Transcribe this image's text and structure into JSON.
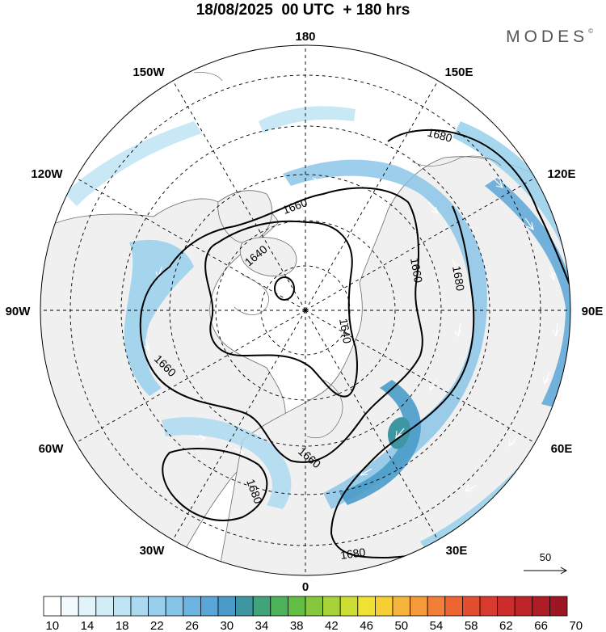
{
  "header": {
    "title": "18/08/2025  00 UTC  + 180 hrs",
    "brand": "MODES"
  },
  "map": {
    "projection": "polar stereographic, north pole",
    "longitude_labels": [
      "180",
      "150E",
      "120E",
      "90E",
      "60E",
      "30E",
      "0",
      "30W",
      "60W",
      "90W",
      "120W",
      "150W"
    ],
    "contour_labels": [
      "1640",
      "1660",
      "1680"
    ],
    "reference_vector": "50",
    "colors": {
      "land_fill": "#f0f0f0",
      "coast": "#666666",
      "grid": "#000000"
    }
  },
  "colorbar": {
    "levels": [
      10,
      12,
      14,
      16,
      18,
      20,
      22,
      24,
      26,
      28,
      30,
      32,
      34,
      36,
      38,
      40,
      42,
      44,
      46,
      48,
      50,
      52,
      54,
      56,
      58,
      60,
      62,
      64,
      66,
      68,
      70
    ],
    "tick_labels": [
      "10",
      "14",
      "18",
      "22",
      "26",
      "30",
      "34",
      "38",
      "42",
      "46",
      "50",
      "54",
      "58",
      "62",
      "66",
      "70"
    ],
    "colors": [
      "#ffffff",
      "#f2fafd",
      "#e2f4fb",
      "#d1edf8",
      "#bfe4f4",
      "#abdaf0",
      "#98cfec",
      "#85c3e7",
      "#6eb4e0",
      "#5aa6d8",
      "#4a9bc9",
      "#3e96a3",
      "#40a37a",
      "#4bb25a",
      "#62bd45",
      "#86c83d",
      "#a8d23a",
      "#cedc36",
      "#f0e135",
      "#f8ce35",
      "#f7b43a",
      "#f59a3a",
      "#f17f37",
      "#ec6533",
      "#e24f30",
      "#d83b2e",
      "#cc2c2c",
      "#bd2329",
      "#ae1c26",
      "#9e1623"
    ]
  }
}
